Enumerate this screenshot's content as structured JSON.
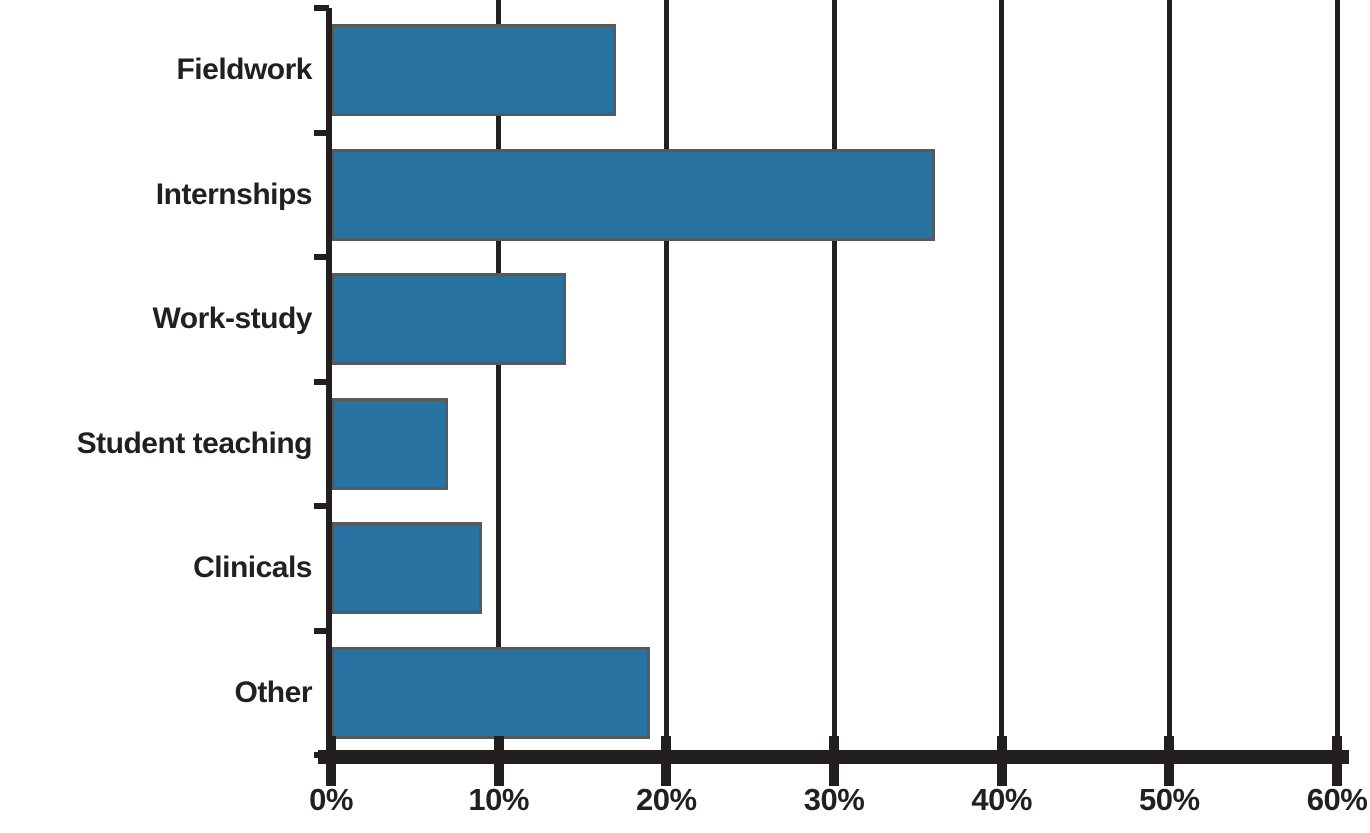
{
  "chart_data": {
    "type": "bar",
    "orientation": "horizontal",
    "title": "",
    "xlabel": "",
    "ylabel": "",
    "categories": [
      "Fieldwork",
      "Internships",
      "Work-study",
      "Student teaching",
      "Clinicals",
      "Other"
    ],
    "values": [
      17,
      36,
      14,
      7,
      9,
      19
    ],
    "unit": "percent",
    "xlim": [
      0,
      60
    ],
    "x_tick_labels": [
      "0%",
      "10%",
      "20%",
      "30%",
      "40%",
      "50%",
      "60%"
    ],
    "grid": "vertical-gridlines-on",
    "legend": "none",
    "colors": {
      "bar_fill": "#2772a1",
      "bar_border": "#58595b",
      "axis_and_grid": "#231f20",
      "text": "#231f20",
      "background": "#ffffff"
    }
  }
}
